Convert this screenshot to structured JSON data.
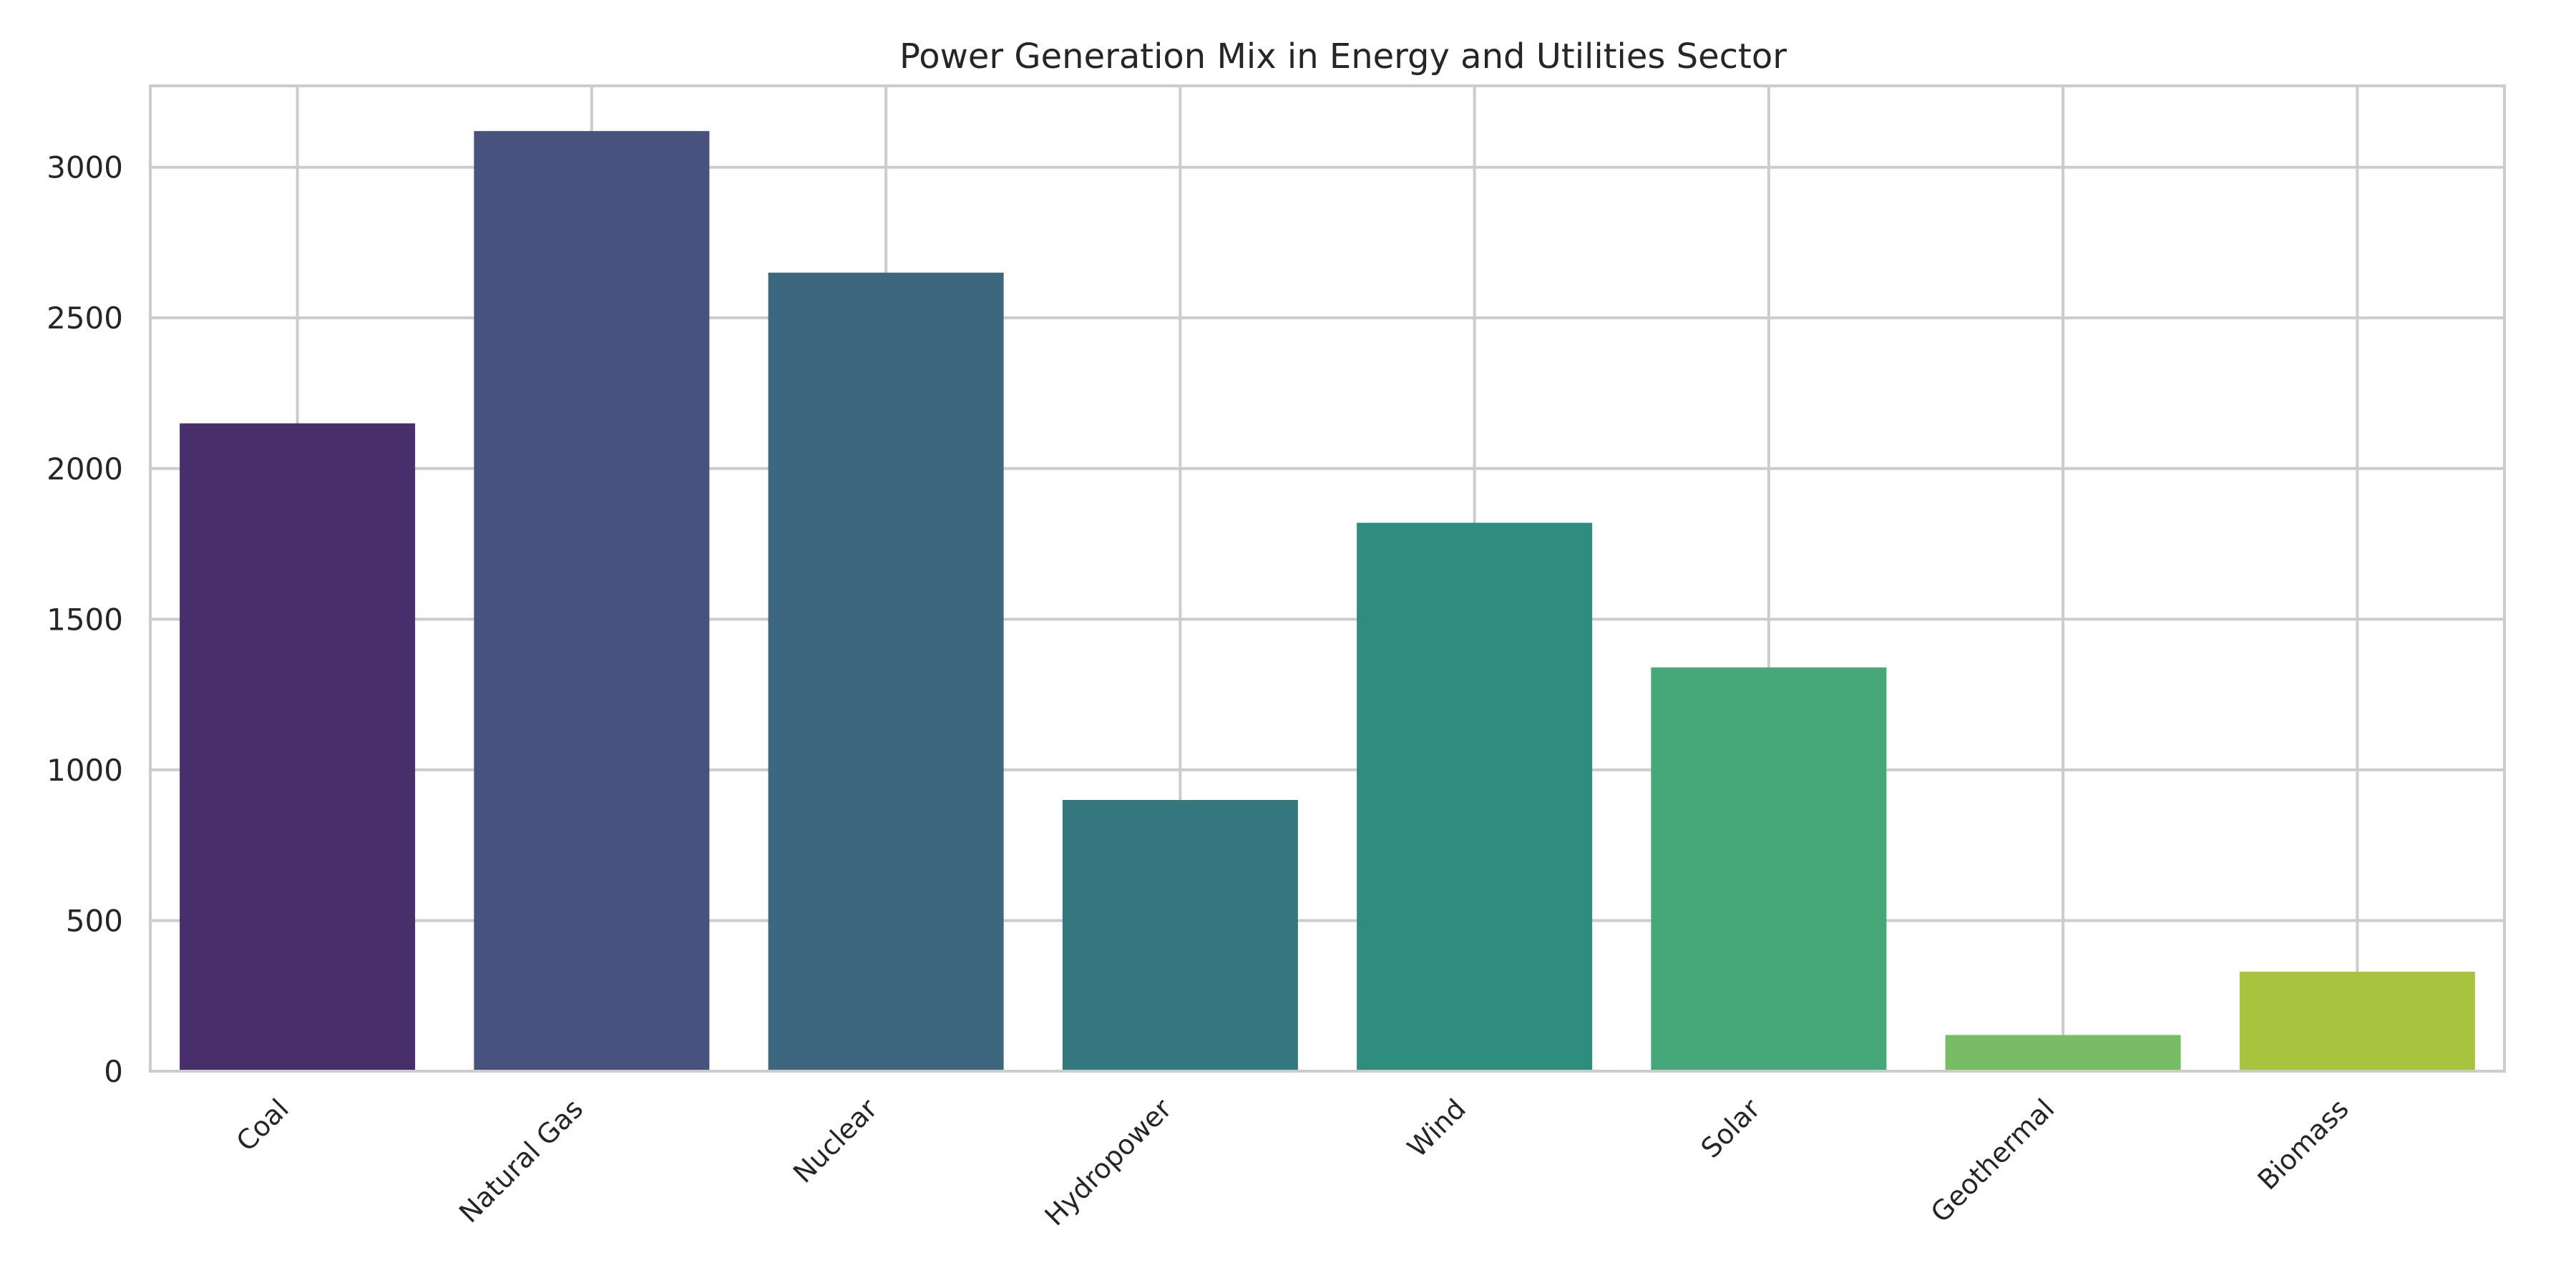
{
  "chart_data": {
    "type": "bar",
    "title": "Power Generation Mix in Energy and Utilities Sector",
    "xlabel": "",
    "ylabel": "",
    "categories": [
      "Coal",
      "Natural Gas",
      "Nuclear",
      "Hydropower",
      "Wind",
      "Solar",
      "Geothermal",
      "Biomass"
    ],
    "values": [
      2150,
      3120,
      2650,
      900,
      1820,
      1340,
      120,
      330
    ],
    "ylim": [
      0,
      3270
    ],
    "yticks": [
      0,
      500,
      1000,
      1500,
      2000,
      2500,
      3000
    ],
    "grid": true,
    "colors": [
      "#482f6b",
      "#47537e",
      "#3d667f",
      "#34777e",
      "#2e8d7d",
      "#46a878",
      "#78bd66",
      "#a8c43f"
    ]
  }
}
